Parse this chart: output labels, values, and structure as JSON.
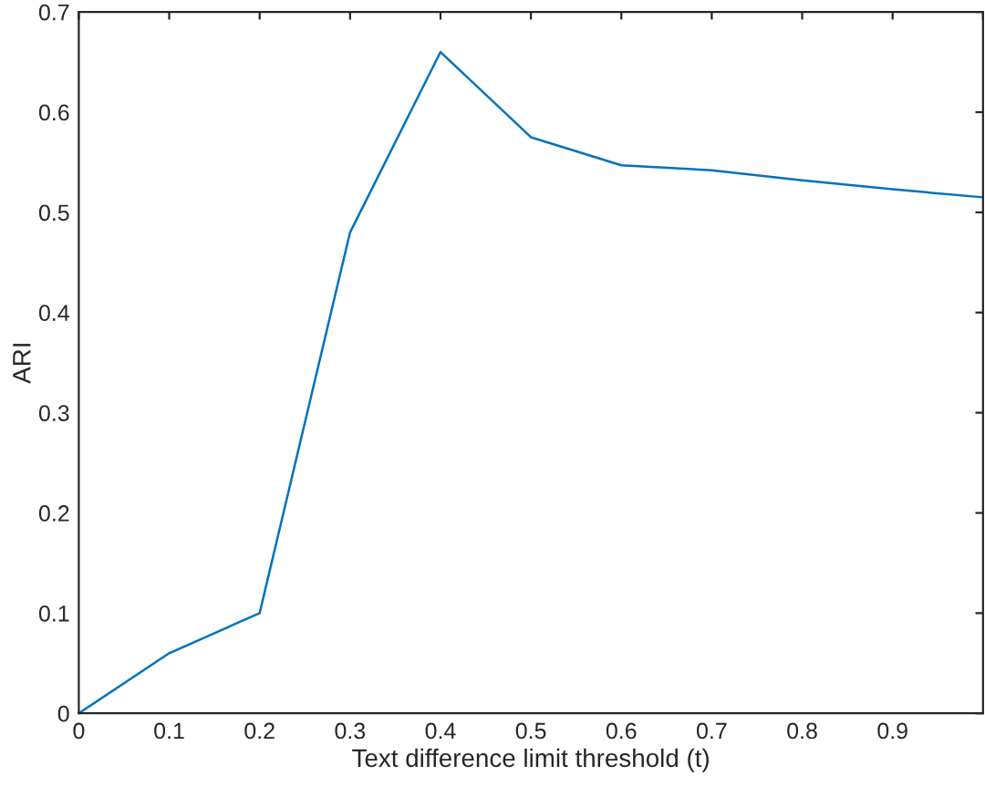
{
  "chart_data": {
    "type": "line",
    "xlabel": "Text difference limit threshold (t)",
    "ylabel": "ARI",
    "x": [
      0,
      0.1,
      0.2,
      0.3,
      0.4,
      0.5,
      0.6,
      0.7,
      0.8,
      0.9,
      1.0
    ],
    "series": [
      {
        "color": "#0072bd",
        "values": [
          0,
          0.06,
          0.1,
          0.48,
          0.66,
          0.575,
          0.547,
          0.542,
          0.532,
          0.523,
          0.515
        ]
      }
    ],
    "xlim": [
      0,
      1
    ],
    "ylim": [
      0,
      0.7
    ],
    "xticks": [
      0,
      0.1,
      0.2,
      0.3,
      0.4,
      0.5,
      0.6,
      0.7,
      0.8,
      0.9,
      {
        "value": 1,
        "label": null
      }
    ],
    "yticks": [
      0,
      0.1,
      0.2,
      0.3,
      0.4,
      0.5,
      0.6,
      0.7
    ],
    "grid": false,
    "legend": false,
    "marker": "none",
    "line_style": "solid"
  }
}
